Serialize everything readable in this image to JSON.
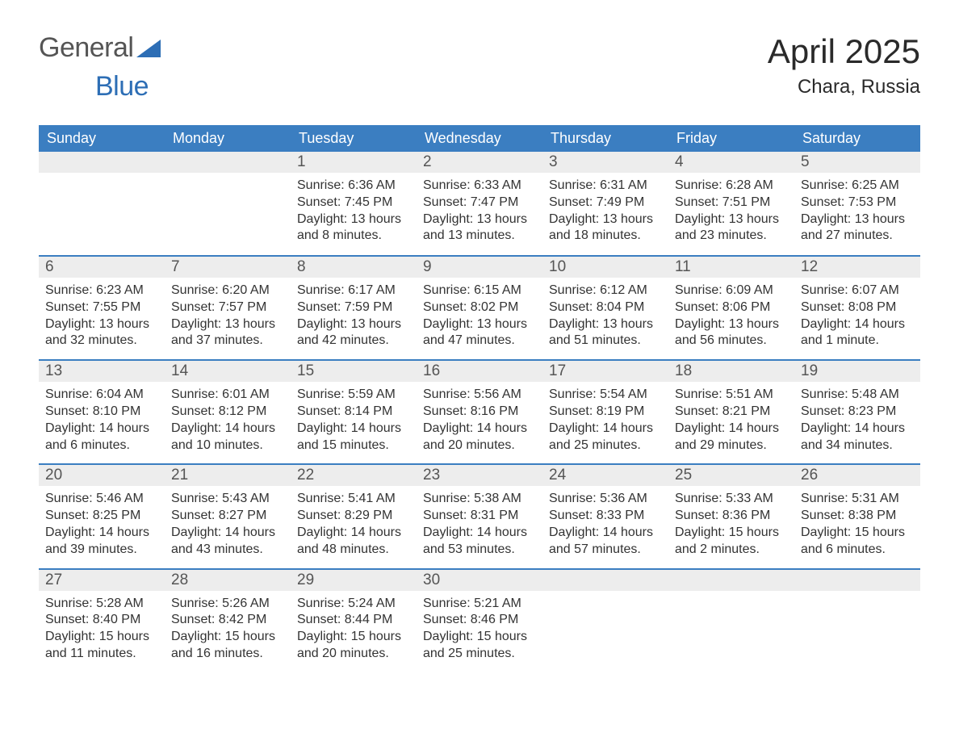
{
  "brand": {
    "part1": "General",
    "part2": "Blue",
    "iconColor": "#2d6eb5"
  },
  "title": {
    "month": "April 2025",
    "location": "Chara, Russia"
  },
  "colors": {
    "headerBg": "#3b7ec1",
    "headerText": "#ffffff",
    "dayNumBg": "#ededed",
    "dayNumText": "#555555",
    "bodyText": "#333333",
    "weekBorder": "#3b7ec1",
    "pageBg": "#ffffff"
  },
  "layout": {
    "columns": 7,
    "rows": 5,
    "cellMinHeight": 128
  },
  "typography": {
    "monthFontSize": 42,
    "locationFontSize": 24,
    "weekdayFontSize": 18,
    "dayNumFontSize": 19,
    "bodyFontSize": 16
  },
  "weekdays": [
    "Sunday",
    "Monday",
    "Tuesday",
    "Wednesday",
    "Thursday",
    "Friday",
    "Saturday"
  ],
  "weeks": [
    [
      {
        "num": "",
        "sunrise": "",
        "sunset": "",
        "daylight": ""
      },
      {
        "num": "",
        "sunrise": "",
        "sunset": "",
        "daylight": ""
      },
      {
        "num": "1",
        "sunrise": "Sunrise: 6:36 AM",
        "sunset": "Sunset: 7:45 PM",
        "daylight": "Daylight: 13 hours and 8 minutes."
      },
      {
        "num": "2",
        "sunrise": "Sunrise: 6:33 AM",
        "sunset": "Sunset: 7:47 PM",
        "daylight": "Daylight: 13 hours and 13 minutes."
      },
      {
        "num": "3",
        "sunrise": "Sunrise: 6:31 AM",
        "sunset": "Sunset: 7:49 PM",
        "daylight": "Daylight: 13 hours and 18 minutes."
      },
      {
        "num": "4",
        "sunrise": "Sunrise: 6:28 AM",
        "sunset": "Sunset: 7:51 PM",
        "daylight": "Daylight: 13 hours and 23 minutes."
      },
      {
        "num": "5",
        "sunrise": "Sunrise: 6:25 AM",
        "sunset": "Sunset: 7:53 PM",
        "daylight": "Daylight: 13 hours and 27 minutes."
      }
    ],
    [
      {
        "num": "6",
        "sunrise": "Sunrise: 6:23 AM",
        "sunset": "Sunset: 7:55 PM",
        "daylight": "Daylight: 13 hours and 32 minutes."
      },
      {
        "num": "7",
        "sunrise": "Sunrise: 6:20 AM",
        "sunset": "Sunset: 7:57 PM",
        "daylight": "Daylight: 13 hours and 37 minutes."
      },
      {
        "num": "8",
        "sunrise": "Sunrise: 6:17 AM",
        "sunset": "Sunset: 7:59 PM",
        "daylight": "Daylight: 13 hours and 42 minutes."
      },
      {
        "num": "9",
        "sunrise": "Sunrise: 6:15 AM",
        "sunset": "Sunset: 8:02 PM",
        "daylight": "Daylight: 13 hours and 47 minutes."
      },
      {
        "num": "10",
        "sunrise": "Sunrise: 6:12 AM",
        "sunset": "Sunset: 8:04 PM",
        "daylight": "Daylight: 13 hours and 51 minutes."
      },
      {
        "num": "11",
        "sunrise": "Sunrise: 6:09 AM",
        "sunset": "Sunset: 8:06 PM",
        "daylight": "Daylight: 13 hours and 56 minutes."
      },
      {
        "num": "12",
        "sunrise": "Sunrise: 6:07 AM",
        "sunset": "Sunset: 8:08 PM",
        "daylight": "Daylight: 14 hours and 1 minute."
      }
    ],
    [
      {
        "num": "13",
        "sunrise": "Sunrise: 6:04 AM",
        "sunset": "Sunset: 8:10 PM",
        "daylight": "Daylight: 14 hours and 6 minutes."
      },
      {
        "num": "14",
        "sunrise": "Sunrise: 6:01 AM",
        "sunset": "Sunset: 8:12 PM",
        "daylight": "Daylight: 14 hours and 10 minutes."
      },
      {
        "num": "15",
        "sunrise": "Sunrise: 5:59 AM",
        "sunset": "Sunset: 8:14 PM",
        "daylight": "Daylight: 14 hours and 15 minutes."
      },
      {
        "num": "16",
        "sunrise": "Sunrise: 5:56 AM",
        "sunset": "Sunset: 8:16 PM",
        "daylight": "Daylight: 14 hours and 20 minutes."
      },
      {
        "num": "17",
        "sunrise": "Sunrise: 5:54 AM",
        "sunset": "Sunset: 8:19 PM",
        "daylight": "Daylight: 14 hours and 25 minutes."
      },
      {
        "num": "18",
        "sunrise": "Sunrise: 5:51 AM",
        "sunset": "Sunset: 8:21 PM",
        "daylight": "Daylight: 14 hours and 29 minutes."
      },
      {
        "num": "19",
        "sunrise": "Sunrise: 5:48 AM",
        "sunset": "Sunset: 8:23 PM",
        "daylight": "Daylight: 14 hours and 34 minutes."
      }
    ],
    [
      {
        "num": "20",
        "sunrise": "Sunrise: 5:46 AM",
        "sunset": "Sunset: 8:25 PM",
        "daylight": "Daylight: 14 hours and 39 minutes."
      },
      {
        "num": "21",
        "sunrise": "Sunrise: 5:43 AM",
        "sunset": "Sunset: 8:27 PM",
        "daylight": "Daylight: 14 hours and 43 minutes."
      },
      {
        "num": "22",
        "sunrise": "Sunrise: 5:41 AM",
        "sunset": "Sunset: 8:29 PM",
        "daylight": "Daylight: 14 hours and 48 minutes."
      },
      {
        "num": "23",
        "sunrise": "Sunrise: 5:38 AM",
        "sunset": "Sunset: 8:31 PM",
        "daylight": "Daylight: 14 hours and 53 minutes."
      },
      {
        "num": "24",
        "sunrise": "Sunrise: 5:36 AM",
        "sunset": "Sunset: 8:33 PM",
        "daylight": "Daylight: 14 hours and 57 minutes."
      },
      {
        "num": "25",
        "sunrise": "Sunrise: 5:33 AM",
        "sunset": "Sunset: 8:36 PM",
        "daylight": "Daylight: 15 hours and 2 minutes."
      },
      {
        "num": "26",
        "sunrise": "Sunrise: 5:31 AM",
        "sunset": "Sunset: 8:38 PM",
        "daylight": "Daylight: 15 hours and 6 minutes."
      }
    ],
    [
      {
        "num": "27",
        "sunrise": "Sunrise: 5:28 AM",
        "sunset": "Sunset: 8:40 PM",
        "daylight": "Daylight: 15 hours and 11 minutes."
      },
      {
        "num": "28",
        "sunrise": "Sunrise: 5:26 AM",
        "sunset": "Sunset: 8:42 PM",
        "daylight": "Daylight: 15 hours and 16 minutes."
      },
      {
        "num": "29",
        "sunrise": "Sunrise: 5:24 AM",
        "sunset": "Sunset: 8:44 PM",
        "daylight": "Daylight: 15 hours and 20 minutes."
      },
      {
        "num": "30",
        "sunrise": "Sunrise: 5:21 AM",
        "sunset": "Sunset: 8:46 PM",
        "daylight": "Daylight: 15 hours and 25 minutes."
      },
      {
        "num": "",
        "sunrise": "",
        "sunset": "",
        "daylight": ""
      },
      {
        "num": "",
        "sunrise": "",
        "sunset": "",
        "daylight": ""
      },
      {
        "num": "",
        "sunrise": "",
        "sunset": "",
        "daylight": ""
      }
    ]
  ]
}
